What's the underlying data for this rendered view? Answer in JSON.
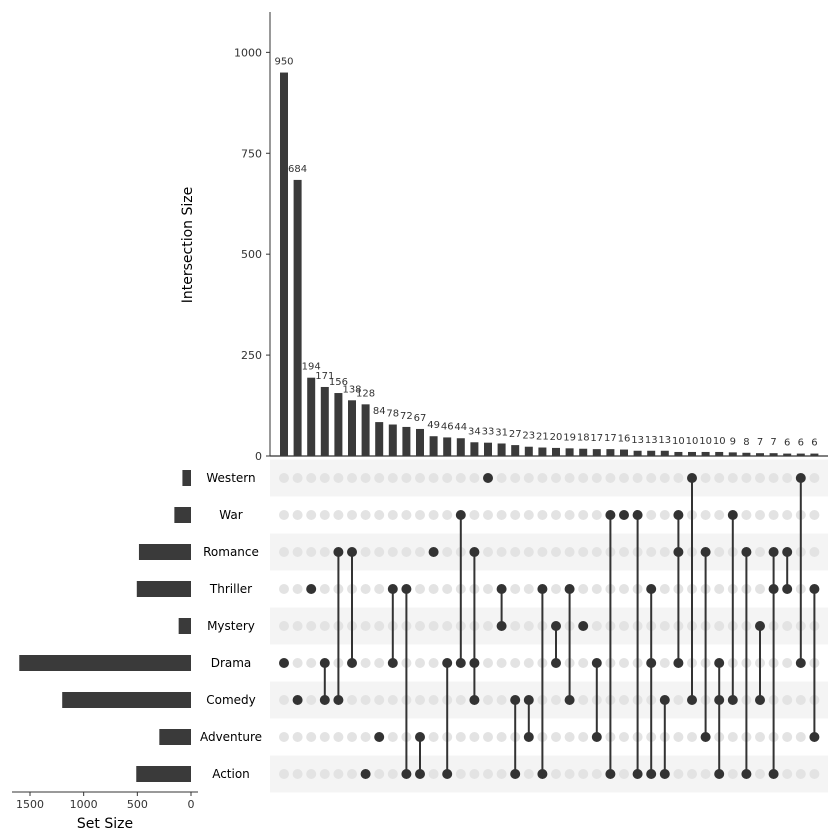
{
  "chart_data": {
    "type": "upset",
    "intersection_axis": {
      "title": "Intersection Size",
      "ylim": [
        0,
        1100
      ],
      "ticks": [
        0,
        250,
        500,
        750,
        1000
      ],
      "tick_labels": [
        "0",
        "250",
        "500",
        "750",
        "1000"
      ]
    },
    "set_size_axis": {
      "title": "Set Size",
      "xlim": [
        1650,
        0
      ],
      "ticks": [
        1500,
        1000,
        500,
        0
      ],
      "tick_labels": [
        "1500",
        "1000",
        "500",
        "0"
      ]
    },
    "sets": [
      {
        "name": "Western",
        "size": 80
      },
      {
        "name": "War",
        "size": 155
      },
      {
        "name": "Romance",
        "size": 485
      },
      {
        "name": "Thriller",
        "size": 505
      },
      {
        "name": "Mystery",
        "size": 115
      },
      {
        "name": "Drama",
        "size": 1600
      },
      {
        "name": "Comedy",
        "size": 1200
      },
      {
        "name": "Adventure",
        "size": 295
      },
      {
        "name": "Action",
        "size": 510
      }
    ],
    "intersections": [
      {
        "size": 950,
        "label": "950",
        "sets": [
          "Drama"
        ]
      },
      {
        "size": 684,
        "label": "684",
        "sets": [
          "Comedy"
        ]
      },
      {
        "size": 194,
        "label": "194",
        "sets": [
          "Thriller"
        ]
      },
      {
        "size": 171,
        "label": "171",
        "sets": [
          "Drama",
          "Comedy"
        ]
      },
      {
        "size": 156,
        "label": "156",
        "sets": [
          "Romance",
          "Comedy"
        ]
      },
      {
        "size": 138,
        "label": "138",
        "sets": [
          "Romance",
          "Drama"
        ]
      },
      {
        "size": 128,
        "label": "128",
        "sets": [
          "Action"
        ]
      },
      {
        "size": 84,
        "label": "84",
        "sets": [
          "Adventure"
        ]
      },
      {
        "size": 78,
        "label": "78",
        "sets": [
          "Thriller",
          "Drama"
        ]
      },
      {
        "size": 72,
        "label": "72",
        "sets": [
          "Thriller",
          "Action"
        ]
      },
      {
        "size": 67,
        "label": "67",
        "sets": [
          "Adventure",
          "Action"
        ]
      },
      {
        "size": 49,
        "label": "49",
        "sets": [
          "Romance"
        ]
      },
      {
        "size": 46,
        "label": "46",
        "sets": [
          "Drama",
          "Action"
        ]
      },
      {
        "size": 44,
        "label": "44",
        "sets": [
          "War",
          "Drama"
        ]
      },
      {
        "size": 34,
        "label": "34",
        "sets": [
          "Romance",
          "Drama",
          "Comedy"
        ]
      },
      {
        "size": 33,
        "label": "33",
        "sets": [
          "Western"
        ]
      },
      {
        "size": 31,
        "label": "31",
        "sets": [
          "Thriller",
          "Mystery"
        ]
      },
      {
        "size": 27,
        "label": "27",
        "sets": [
          "Comedy",
          "Action"
        ]
      },
      {
        "size": 23,
        "label": "23",
        "sets": [
          "Comedy",
          "Adventure"
        ]
      },
      {
        "size": 21,
        "label": "21",
        "sets": [
          "Thriller",
          "Action"
        ]
      },
      {
        "size": 20,
        "label": "20",
        "sets": [
          "Mystery",
          "Drama"
        ]
      },
      {
        "size": 19,
        "label": "19",
        "sets": [
          "Thriller",
          "Comedy"
        ]
      },
      {
        "size": 18,
        "label": "18",
        "sets": [
          "Mystery"
        ]
      },
      {
        "size": 17,
        "label": "17",
        "sets": [
          "Drama",
          "Adventure"
        ]
      },
      {
        "size": 17,
        "label": "17",
        "sets": [
          "War",
          "Action"
        ]
      },
      {
        "size": 16,
        "label": "16",
        "sets": [
          "War"
        ]
      },
      {
        "size": 13,
        "label": "13",
        "sets": [
          "War",
          "Action"
        ]
      },
      {
        "size": 13,
        "label": "13",
        "sets": [
          "Thriller",
          "Drama",
          "Action"
        ]
      },
      {
        "size": 13,
        "label": "13",
        "sets": [
          "Comedy",
          "Action"
        ]
      },
      {
        "size": 10,
        "label": "10",
        "sets": [
          "War",
          "Romance",
          "Drama"
        ]
      },
      {
        "size": 10,
        "label": "10",
        "sets": [
          "Western",
          "Comedy"
        ]
      },
      {
        "size": 10,
        "label": "10",
        "sets": [
          "Romance",
          "Adventure"
        ]
      },
      {
        "size": 10,
        "label": "10",
        "sets": [
          "Drama",
          "Comedy",
          "Action"
        ]
      },
      {
        "size": 9,
        "label": "9",
        "sets": [
          "War",
          "Comedy"
        ]
      },
      {
        "size": 8,
        "label": "8",
        "sets": [
          "Romance",
          "Action"
        ]
      },
      {
        "size": 7,
        "label": "7",
        "sets": [
          "Mystery",
          "Comedy"
        ]
      },
      {
        "size": 7,
        "label": "7",
        "sets": [
          "Romance",
          "Thriller",
          "Action"
        ]
      },
      {
        "size": 6,
        "label": "6",
        "sets": [
          "Romance",
          "Thriller"
        ]
      },
      {
        "size": 6,
        "label": "6",
        "sets": [
          "Western",
          "Drama"
        ]
      },
      {
        "size": 6,
        "label": "6",
        "sets": [
          "Thriller",
          "Adventure"
        ]
      }
    ],
    "colors": {
      "bar": "#3a3a3a",
      "dot_active": "#333333",
      "dot_inactive": "#e3e3e3",
      "stripe": "#f4f4f4"
    },
    "grid": false,
    "legend": "none"
  }
}
